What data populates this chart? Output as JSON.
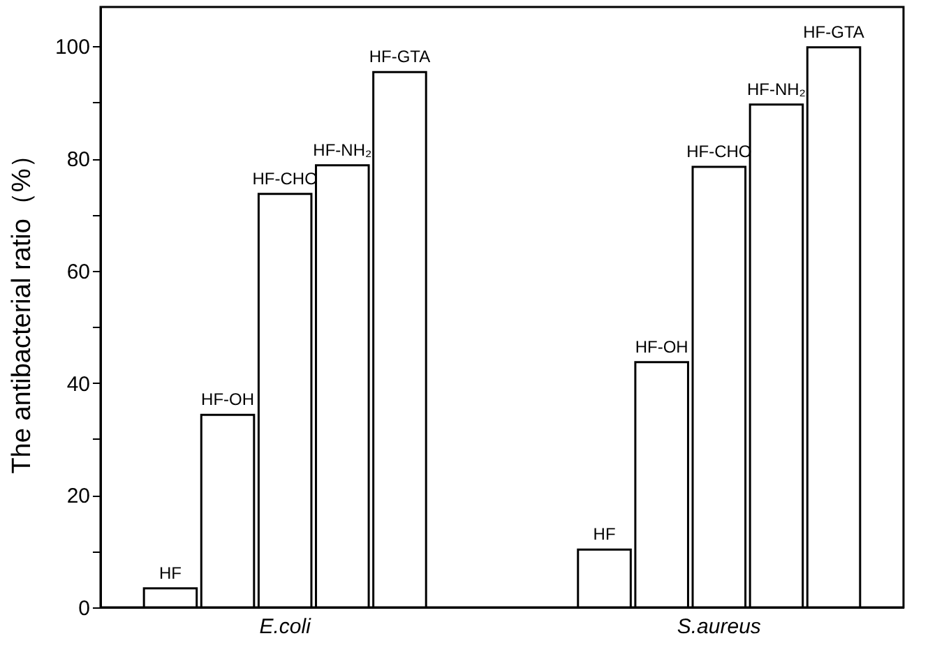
{
  "chart_data": {
    "type": "bar",
    "ylabel": "The antibacterial ratio（%）",
    "categories": [
      "E.coli",
      "S.aureus"
    ],
    "series": [
      {
        "name": "HF",
        "color": "#ffffff",
        "values": [
          3.4,
          10.3
        ]
      },
      {
        "name": "HF-OH",
        "color": "#ffffff",
        "values": [
          34.3,
          43.7
        ]
      },
      {
        "name": "HF-CHO",
        "color": "#ffffff",
        "values": [
          73.7,
          78.5
        ]
      },
      {
        "name": "HF-NH₂",
        "color": "#ffffff",
        "values": [
          78.8,
          89.6
        ]
      },
      {
        "name": "HF-GTA",
        "color": "#ffffff",
        "values": [
          95.4,
          99.8
        ]
      }
    ],
    "ylim": [
      0,
      107
    ],
    "yticks": [
      0,
      {
        "value": 10,
        "label": null
      },
      20,
      {
        "value": 30,
        "label": null
      },
      40,
      {
        "value": 50,
        "label": null
      },
      60,
      {
        "value": 70,
        "label": null
      },
      80,
      {
        "value": 90,
        "label": null
      },
      100
    ],
    "grid": false,
    "legend": false
  }
}
